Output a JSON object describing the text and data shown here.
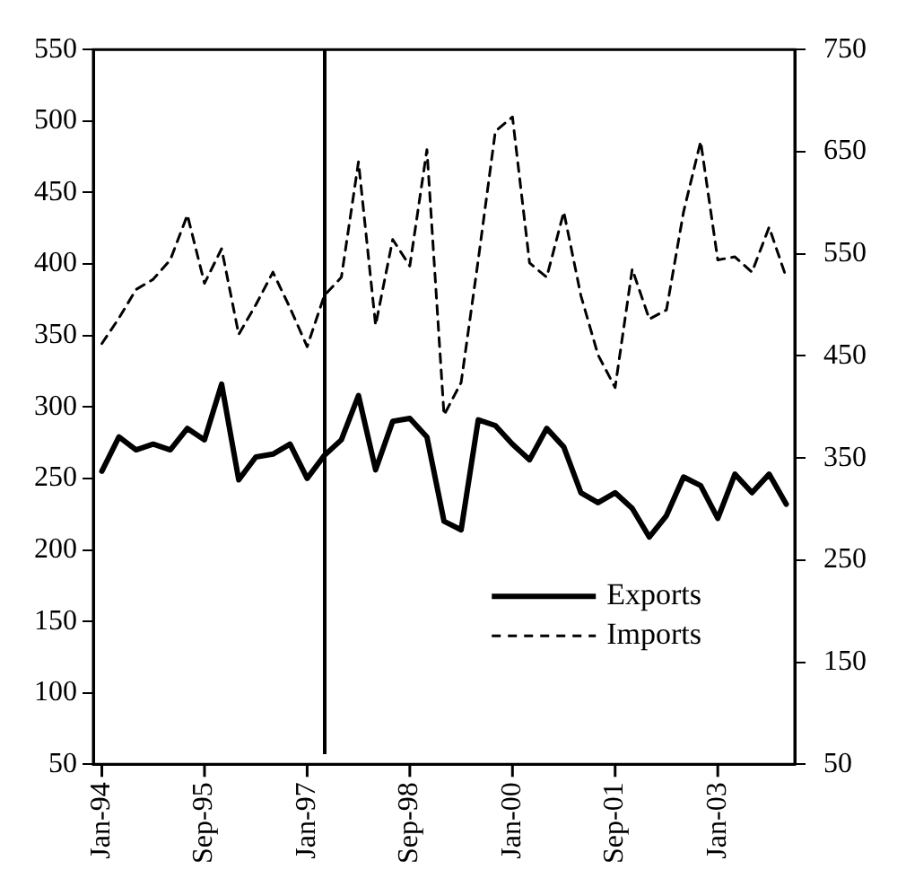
{
  "chart_data": {
    "type": "line",
    "categories": [
      "Jan-94",
      null,
      null,
      null,
      null,
      null,
      "Sep-95",
      null,
      null,
      null,
      null,
      null,
      "Jan-97",
      null,
      null,
      null,
      null,
      null,
      "Sep-98",
      null,
      null,
      null,
      null,
      null,
      "Jan-00",
      null,
      null,
      null,
      null,
      null,
      "Sep-01",
      null,
      null,
      null,
      null,
      null,
      "Jan-03",
      null,
      null,
      null,
      null
    ],
    "series": [
      {
        "name": "Exports",
        "color": "#000000",
        "line_style": "solid",
        "values": [
          255,
          279,
          270,
          274,
          270,
          285,
          277,
          316,
          249,
          265,
          267,
          274,
          250,
          266,
          277,
          308,
          256,
          290,
          292,
          279,
          220,
          214,
          291,
          287,
          274,
          263,
          285,
          272,
          240,
          233,
          240,
          229,
          209,
          224,
          251,
          245,
          222,
          253,
          240,
          253,
          232
        ]
      },
      {
        "name": "Imports",
        "color": "#000000",
        "line_style": "dashed",
        "axis": "y2",
        "values": [
          462,
          487,
          515,
          525,
          544,
          588,
          521,
          555,
          471,
          500,
          532,
          497,
          459,
          509,
          527,
          640,
          480,
          564,
          538,
          652,
          392,
          424,
          544,
          670,
          684,
          541,
          527,
          591,
          509,
          451,
          419,
          535,
          486,
          495,
          591,
          660,
          544,
          547,
          532,
          576,
          527
        ]
      }
    ],
    "ylim": [
      50,
      550
    ],
    "yticks": [
      50,
      100,
      150,
      200,
      250,
      300,
      350,
      400,
      450,
      500,
      550
    ],
    "y2lim": [
      50,
      750
    ],
    "y2ticks": [
      50,
      150,
      250,
      350,
      450,
      550,
      650,
      750
    ],
    "grid": false,
    "legend": "bottom right",
    "marker": "none"
  }
}
